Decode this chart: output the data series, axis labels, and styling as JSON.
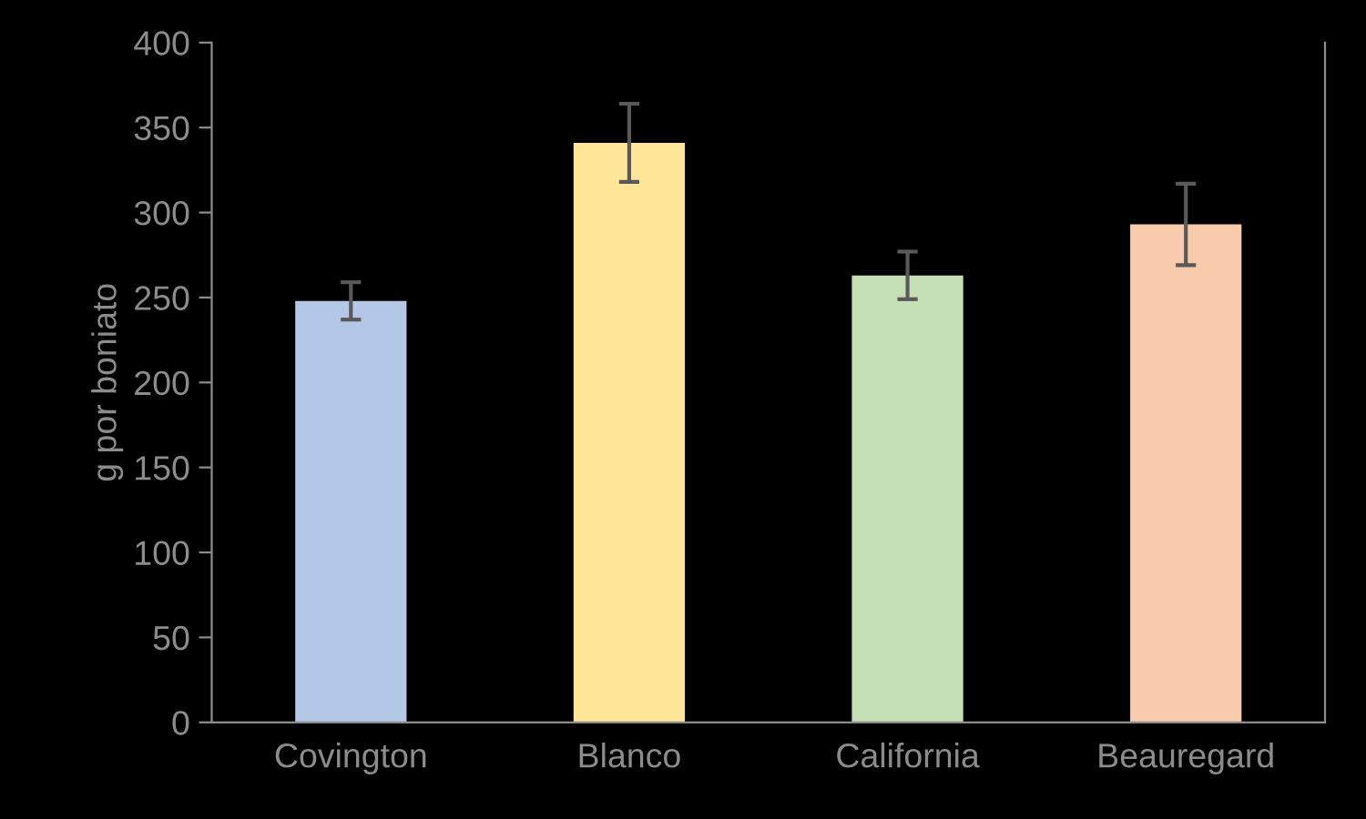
{
  "chart_data": {
    "type": "bar",
    "ylabel": "g por boniato",
    "categories": [
      "Covington",
      "Blanco",
      "California",
      "Beauregard"
    ],
    "values": [
      248,
      341,
      263,
      293
    ],
    "errors": [
      11,
      23,
      14,
      24
    ],
    "colors": [
      "#b4c7e7",
      "#ffe699",
      "#c5e0b4",
      "#f8cbad"
    ],
    "ylim": [
      0,
      400
    ],
    "yticks": [
      0,
      50,
      100,
      150,
      200,
      250,
      300,
      350,
      400
    ],
    "grid": false
  }
}
